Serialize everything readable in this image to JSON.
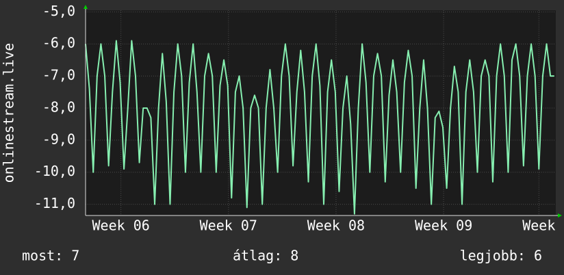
{
  "chart_data": {
    "type": "line",
    "y_label": "onlinestream.live",
    "footer": {
      "current": "most: 7",
      "average": "átlag: 8",
      "best": "legjobb: 6"
    },
    "xlim": [
      0,
      30.6
    ],
    "xticks": [
      {
        "value": 2.3,
        "label": "Week 06"
      },
      {
        "value": 9.3,
        "label": "Week 07"
      },
      {
        "value": 16.3,
        "label": "Week 08"
      },
      {
        "value": 23.3,
        "label": "Week 09"
      },
      {
        "value": 29.5,
        "label": "Week"
      }
    ],
    "ylim": [
      -11.35,
      -4.95
    ],
    "yticks": [
      {
        "value": -5,
        "label": "-5,0"
      },
      {
        "value": -6,
        "label": "-6,0"
      },
      {
        "value": -7,
        "label": "-7,0"
      },
      {
        "value": -8,
        "label": "-8,0"
      },
      {
        "value": -9,
        "label": "-9,0"
      },
      {
        "value": -10,
        "label": "-10,0"
      },
      {
        "value": -11,
        "label": "-11,0"
      }
    ],
    "grid": true,
    "x": [
      0,
      0.25,
      0.5,
      0.75,
      1,
      1.25,
      1.5,
      1.75,
      2,
      2.25,
      2.5,
      2.75,
      3,
      3.25,
      3.5,
      3.75,
      4,
      4.25,
      4.5,
      4.75,
      5,
      5.25,
      5.5,
      5.75,
      6,
      6.25,
      6.5,
      6.75,
      7,
      7.25,
      7.5,
      7.75,
      8,
      8.25,
      8.5,
      8.75,
      9,
      9.25,
      9.5,
      9.75,
      10,
      10.25,
      10.5,
      10.75,
      11,
      11.25,
      11.5,
      11.75,
      12,
      12.25,
      12.5,
      12.75,
      13,
      13.25,
      13.5,
      13.75,
      14,
      14.25,
      14.5,
      14.75,
      15,
      15.25,
      15.5,
      15.75,
      16,
      16.25,
      16.5,
      16.75,
      17,
      17.25,
      17.5,
      17.75,
      18,
      18.25,
      18.5,
      18.75,
      19,
      19.25,
      19.5,
      19.75,
      20,
      20.25,
      20.5,
      20.75,
      21,
      21.25,
      21.5,
      21.75,
      22,
      22.25,
      22.5,
      22.75,
      23,
      23.25,
      23.5,
      23.75,
      24,
      24.25,
      24.5,
      24.75,
      25,
      25.25,
      25.5,
      25.75,
      26,
      26.25,
      26.5,
      26.75,
      27,
      27.25,
      27.5,
      27.75,
      28,
      28.25,
      28.5,
      28.75,
      29,
      29.25,
      29.5,
      29.75,
      30,
      30.25,
      30.5
    ],
    "series": [
      {
        "name": "onlinestream.live",
        "color": "#86efb0",
        "values": [
          -6.0,
          -7.4,
          -10.0,
          -7.0,
          -6.0,
          -7.0,
          -9.8,
          -7.5,
          -5.9,
          -7.2,
          -9.9,
          -8.0,
          -5.9,
          -7.0,
          -9.7,
          -8.0,
          -8.0,
          -8.3,
          -11.0,
          -8.0,
          -6.3,
          -7.8,
          -11.0,
          -7.5,
          -6.0,
          -7.0,
          -10.0,
          -7.2,
          -6.0,
          -7.5,
          -10.0,
          -7.0,
          -6.3,
          -7.0,
          -10.0,
          -7.3,
          -6.5,
          -7.3,
          -10.8,
          -7.5,
          -7.0,
          -8.0,
          -11.1,
          -8.0,
          -7.6,
          -8.0,
          -11.0,
          -8.0,
          -6.8,
          -8.0,
          -10.0,
          -7.0,
          -6.0,
          -7.0,
          -9.8,
          -7.5,
          -6.2,
          -7.5,
          -10.3,
          -7.0,
          -6.0,
          -7.3,
          -11.0,
          -7.5,
          -6.5,
          -7.5,
          -10.6,
          -8.0,
          -7.0,
          -8.5,
          -11.3,
          -8.0,
          -6.0,
          -7.2,
          -10.0,
          -7.0,
          -6.3,
          -7.0,
          -10.3,
          -7.6,
          -6.5,
          -7.5,
          -10.0,
          -7.2,
          -6.2,
          -7.0,
          -10.5,
          -8.0,
          -6.5,
          -8.0,
          -11.0,
          -8.3,
          -8.1,
          -8.6,
          -10.5,
          -8.0,
          -6.7,
          -7.5,
          -11.0,
          -7.5,
          -6.5,
          -7.5,
          -10.0,
          -7.0,
          -6.5,
          -7.0,
          -10.3,
          -7.0,
          -6.0,
          -7.0,
          -10.0,
          -6.5,
          -6.0,
          -7.0,
          -9.8,
          -7.0,
          -6.0,
          -7.0,
          -9.9,
          -7.0,
          -6.0,
          -7.0,
          -7.0
        ]
      }
    ]
  }
}
